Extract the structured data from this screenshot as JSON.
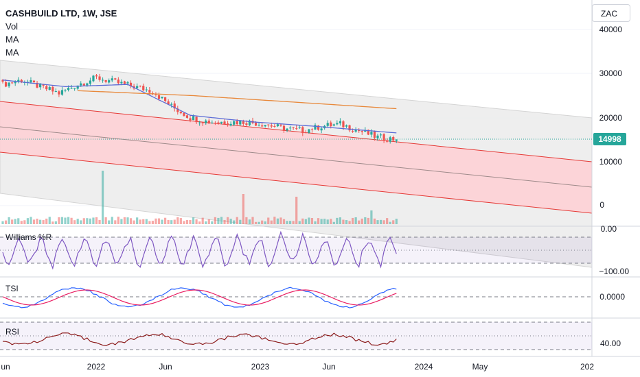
{
  "legend": {
    "symbol": "CASHBUILD LTD, 1W, JSE",
    "lines": [
      "Vol",
      "MA",
      "MA"
    ]
  },
  "currency": "ZAC",
  "last_price": "14998",
  "indicators": {
    "williams": {
      "label": "Williams %R",
      "top_tick": "0.00",
      "bottom_tick": "−100.00"
    },
    "tsi": {
      "label": "TSI",
      "tick": "0.0000"
    },
    "rsi": {
      "label": "RSI",
      "tick": "40.00"
    }
  },
  "colors": {
    "up": "#26a69a",
    "down": "#ef5350",
    "channel_fill": "#ffcdd2",
    "channel_line": "#e53935",
    "wide_channel_fill": "#ebebeb",
    "ma_fast": "#5b6bd6",
    "ma_slow": "#e8883a",
    "williams": "#7e57c2",
    "tsi_main": "#2962ff",
    "tsi_signal": "#e91e63",
    "rsi": "#8b1a1a"
  },
  "chart_data": {
    "type": "candlestick",
    "interval": "1W",
    "y_axis_ticks": [
      "40000",
      "30000",
      "20000",
      "10000",
      "0"
    ],
    "x_axis_ticks": [
      "un",
      "2022",
      "Jun",
      "2023",
      "Jun",
      "2024",
      "May",
      "202"
    ],
    "ylim": [
      0,
      40000
    ],
    "series": [
      {
        "name": "price",
        "x": [
          0,
          6,
          12,
          18,
          24,
          30,
          36,
          42,
          48,
          54,
          60,
          66,
          72,
          78,
          84,
          90,
          96,
          102,
          108,
          114,
          120,
          126
        ],
        "values": [
          27500,
          28500,
          27000,
          25500,
          27500,
          29000,
          28000,
          27000,
          26000,
          22500,
          20000,
          19000,
          19000,
          19000,
          18500,
          17500,
          17000,
          18000,
          18500,
          17000,
          15500,
          14998
        ]
      },
      {
        "name": "MA",
        "x": [
          0,
          20,
          40,
          60,
          80,
          100,
          126
        ],
        "values": [
          28500,
          27000,
          27500,
          20500,
          19000,
          18000,
          16500
        ]
      },
      {
        "name": "MA",
        "x": [
          10,
          60,
          126
        ],
        "values": [
          26500,
          25000,
          22000
        ]
      }
    ]
  }
}
